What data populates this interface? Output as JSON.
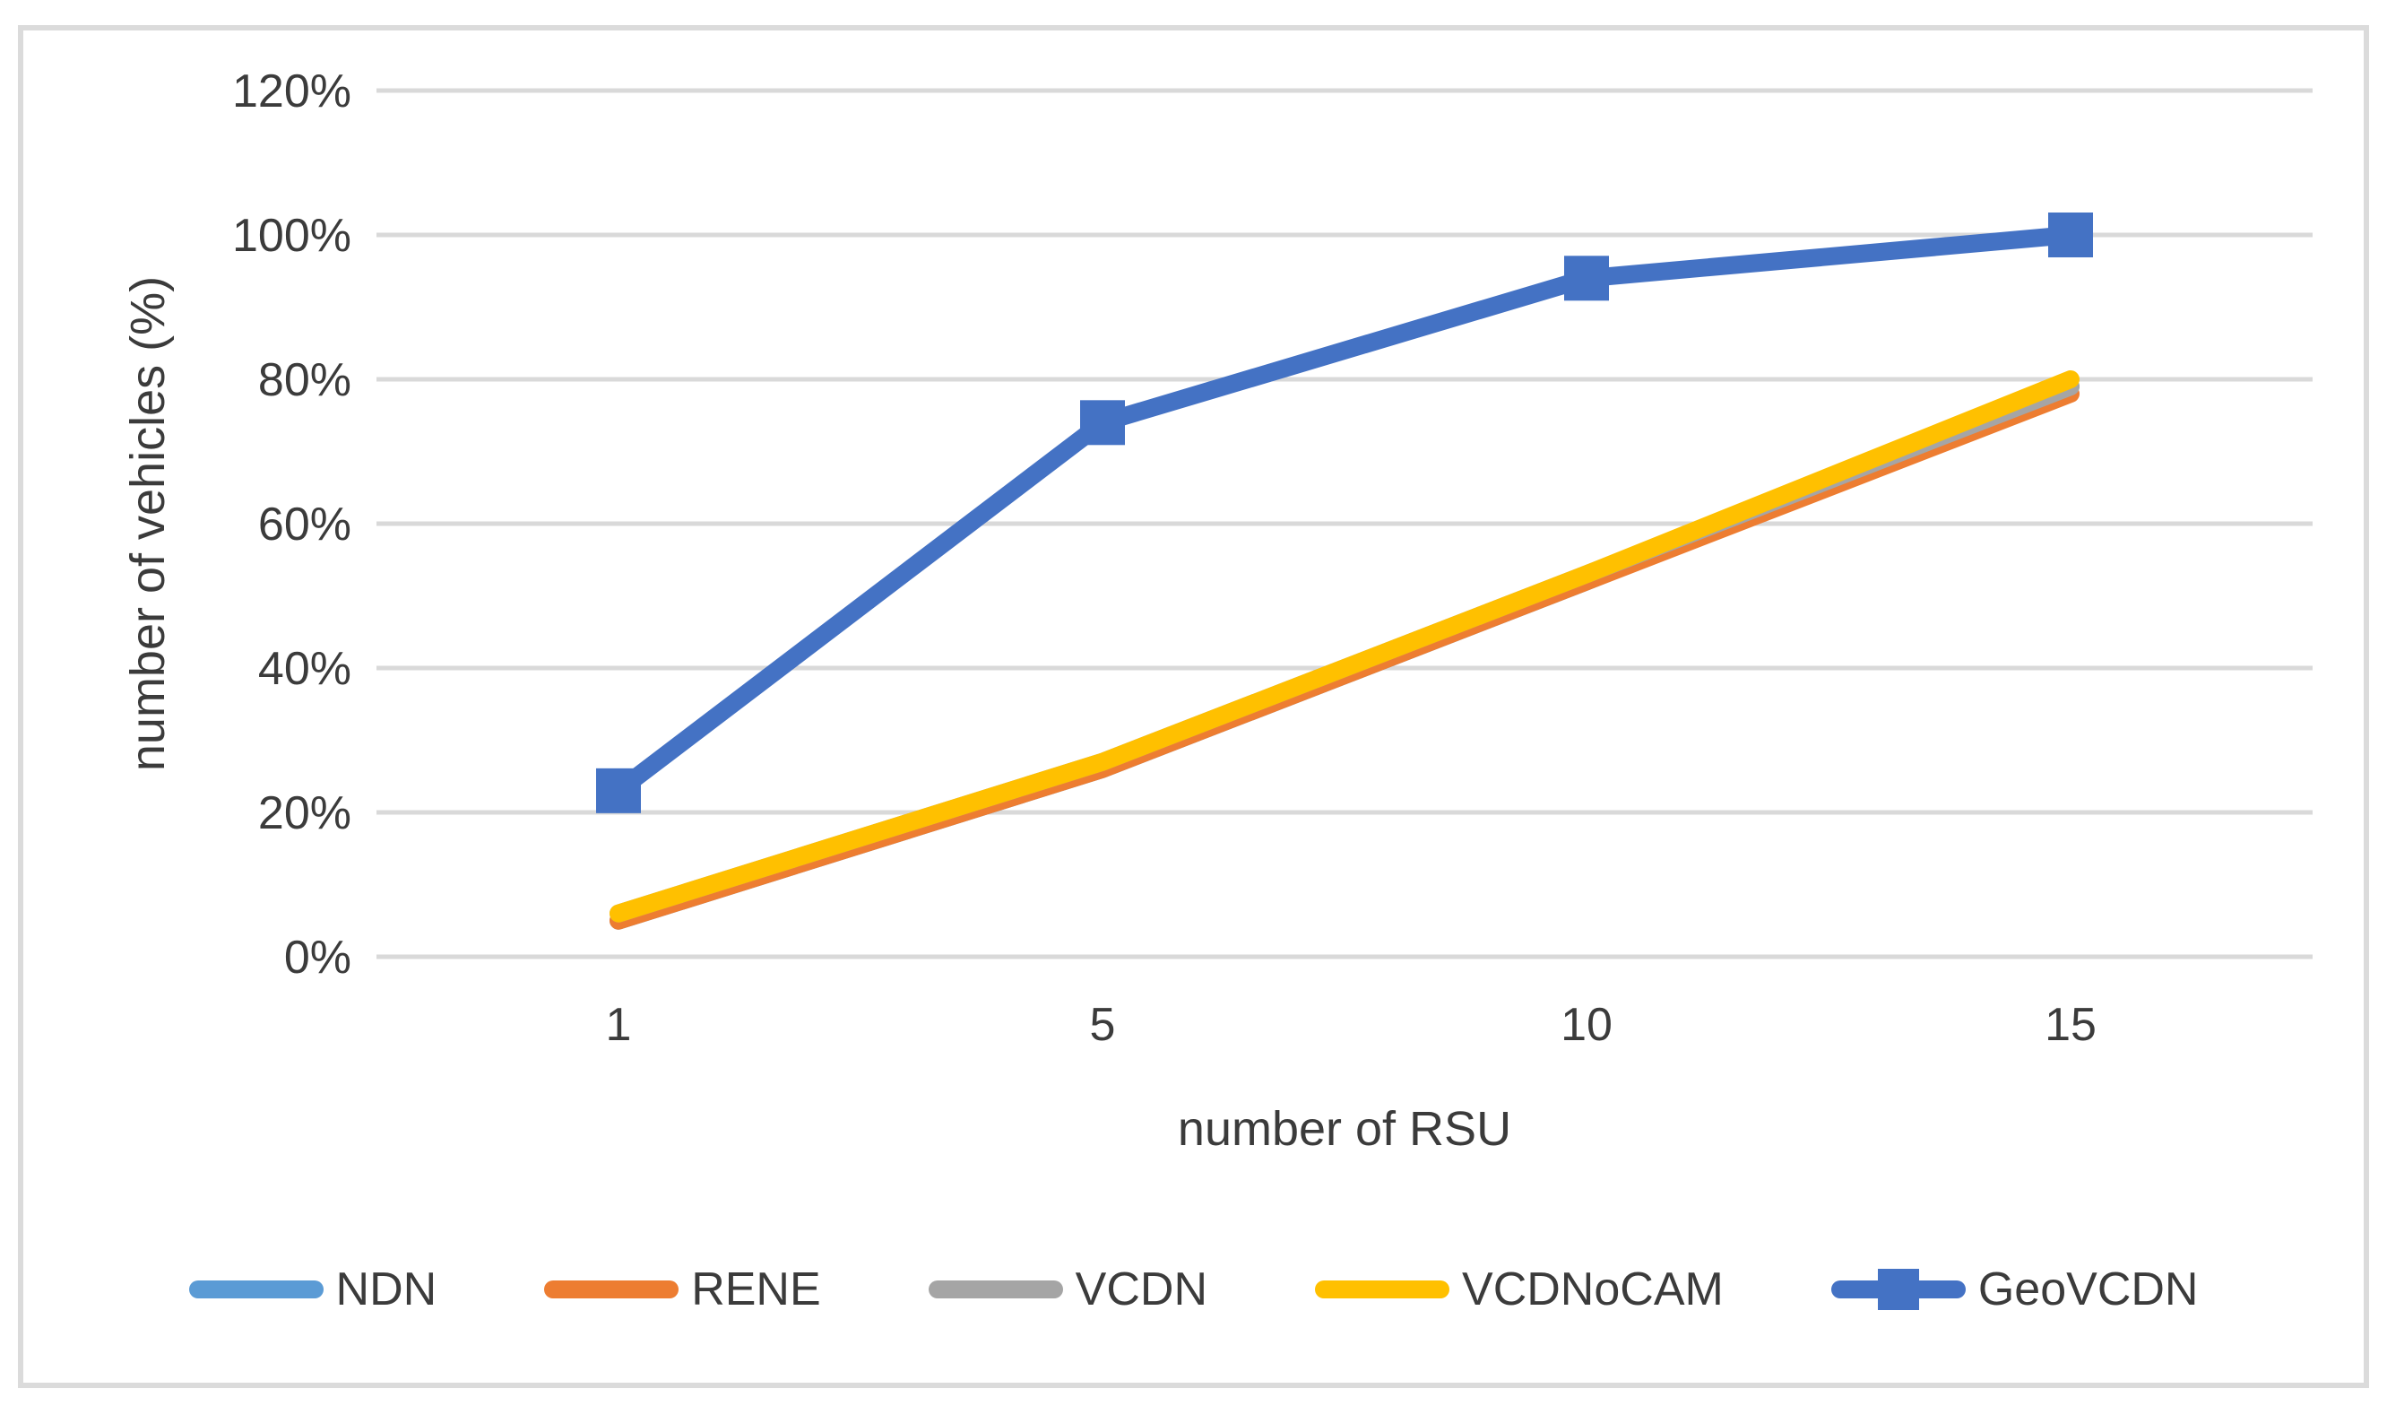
{
  "figure": {
    "background": "#FFFFFF",
    "border_color": "#DBDBDB",
    "gridline_color": "#D9D9D9",
    "text_color": "#3b3b3b"
  },
  "chart_data": {
    "type": "line",
    "title": "",
    "xlabel": "number of RSU",
    "ylabel": "number of vehicles (%)",
    "x_axis_type": "categorical",
    "categories": [
      "1",
      "5",
      "10",
      "15"
    ],
    "x_values": [
      1,
      5,
      10,
      15
    ],
    "ylim": [
      0,
      120
    ],
    "yticks": [
      0,
      20,
      40,
      60,
      80,
      100,
      120
    ],
    "ytick_labels": [
      "0%",
      "20%",
      "40%",
      "60%",
      "80%",
      "100%",
      "120%"
    ],
    "grid": "horizontal",
    "legend_position": "bottom",
    "series": [
      {
        "name": "NDN",
        "color": "#5B9BD5",
        "marker": "none",
        "values": [
          5,
          26,
          52,
          79
        ]
      },
      {
        "name": "RENE",
        "color": "#ED7D31",
        "marker": "none",
        "values": [
          5,
          26,
          52,
          78
        ]
      },
      {
        "name": "VCDN",
        "color": "#A5A5A5",
        "marker": "none",
        "values": [
          6,
          27,
          53,
          79
        ]
      },
      {
        "name": "VCDNoCAM",
        "color": "#FFC000",
        "marker": "none",
        "values": [
          6,
          27,
          53,
          80
        ]
      },
      {
        "name": "GeoVCDN",
        "color": "#4472C4",
        "marker": "square",
        "values": [
          23,
          74,
          94,
          100
        ]
      }
    ]
  }
}
